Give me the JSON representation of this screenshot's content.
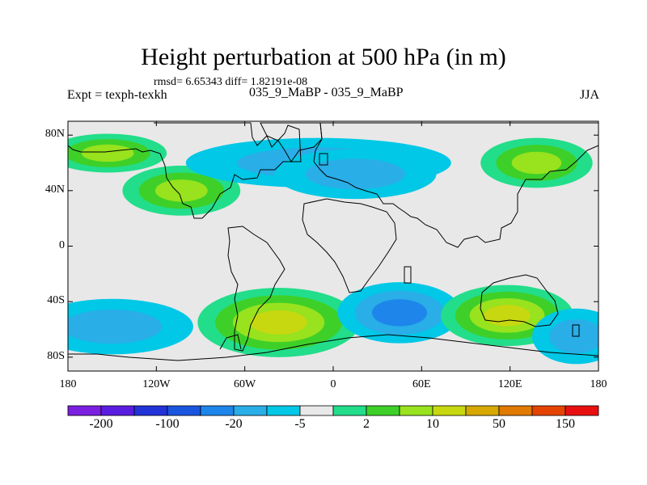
{
  "title": "Height perturbation at 500 hPa (in m)",
  "stats_line": "rmsd= 6.65343  diff= 1.82191e-08",
  "experiment_label": "Expt = texph-texkh",
  "case_label": "035_9_MaBP - 035_9_MaBP",
  "season_label": "JJA",
  "map": {
    "lon_range": [
      -180,
      180
    ],
    "lat_range": [
      -90,
      90
    ],
    "y_ticks": [
      {
        "value": 80,
        "label": "80N"
      },
      {
        "value": 40,
        "label": "40N"
      },
      {
        "value": 0,
        "label": "0"
      },
      {
        "value": -40,
        "label": "40S"
      },
      {
        "value": -80,
        "label": "80S"
      }
    ],
    "x_ticks": [
      {
        "value": -180,
        "label": "180"
      },
      {
        "value": -120,
        "label": "120W"
      },
      {
        "value": -60,
        "label": "60W"
      },
      {
        "value": 0,
        "label": "0"
      },
      {
        "value": 60,
        "label": "60E"
      },
      {
        "value": 120,
        "label": "120E"
      },
      {
        "value": 180,
        "label": "180"
      }
    ],
    "background_color": "#e8e8e8",
    "features": [
      {
        "name": "north-pacific-positive-anomaly",
        "lon": -153,
        "lat": 67,
        "lon_r": 40,
        "lat_r": 14,
        "level": 3
      },
      {
        "name": "north-america-positive-anomaly",
        "lon": -103,
        "lat": 40,
        "lon_r": 40,
        "lat_r": 18,
        "level": 3
      },
      {
        "name": "arctic-negative-anomaly",
        "lon": -10,
        "lat": 60,
        "lon_r": 90,
        "lat_r": 18,
        "level": -2
      },
      {
        "name": "eurasia-negative-anomaly",
        "lon": 15,
        "lat": 52,
        "lon_r": 55,
        "lat_r": 18,
        "level": -2
      },
      {
        "name": "siberia-positive-anomaly",
        "lon": 138,
        "lat": 60,
        "lon_r": 38,
        "lat_r": 18,
        "level": 3
      },
      {
        "name": "south-pacific-negative-anomaly",
        "lon": -150,
        "lat": -58,
        "lon_r": 55,
        "lat_r": 20,
        "level": -2
      },
      {
        "name": "south-atlantic-positive-anomaly",
        "lon": -37,
        "lat": -55,
        "lon_r": 55,
        "lat_r": 25,
        "level": 4
      },
      {
        "name": "indian-ocean-negative-anomaly",
        "lon": 45,
        "lat": -48,
        "lon_r": 42,
        "lat_r": 22,
        "level": -3
      },
      {
        "name": "australia-positive-anomaly",
        "lon": 118,
        "lat": -50,
        "lon_r": 45,
        "lat_r": 22,
        "level": 4
      },
      {
        "name": "southern-ocean-negative-anomaly",
        "lon": 165,
        "lat": -65,
        "lon_r": 30,
        "lat_r": 20,
        "level": -2
      }
    ]
  },
  "colorbar": {
    "colors": [
      "#7b1fe0",
      "#5a1de0",
      "#2233d8",
      "#1a55e0",
      "#1e86ea",
      "#29aee8",
      "#00c8e6",
      "#e8e8e8",
      "#22dd8a",
      "#3ed028",
      "#98e21e",
      "#c8d810",
      "#d6a800",
      "#e07a00",
      "#e54400",
      "#e81010"
    ],
    "labels": [
      "-200",
      "-100",
      "-20",
      "-5",
      "2",
      "10",
      "50",
      "150"
    ]
  }
}
